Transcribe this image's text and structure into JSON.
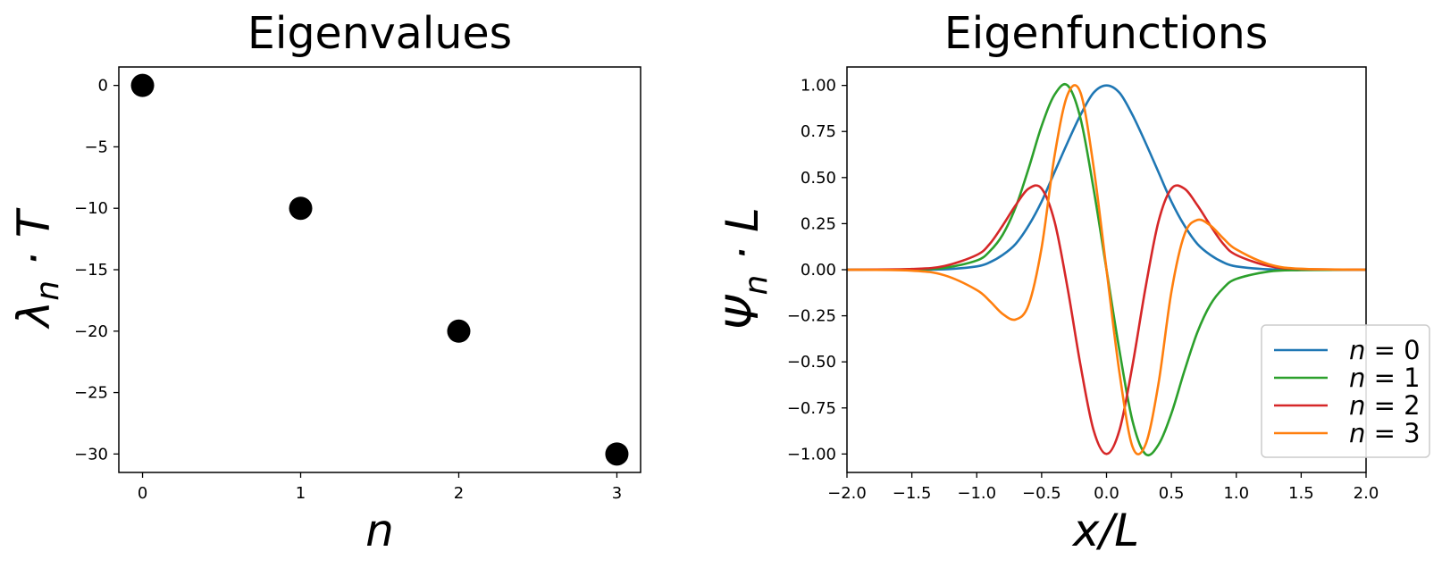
{
  "chart_data": [
    {
      "type": "scatter",
      "title": "Eigenvalues",
      "xlabel": "n",
      "ylabel": "λ_n · T",
      "ylabel_parts": {
        "main": "λ",
        "sub": "n",
        "rest": " · T"
      },
      "x": [
        0,
        1,
        2,
        3
      ],
      "y": [
        0,
        -10,
        -20,
        -30
      ],
      "xlim": [
        -0.15,
        3.15
      ],
      "ylim": [
        -31.5,
        1.5
      ],
      "xticks": [
        "0",
        "1",
        "2",
        "3"
      ],
      "yticks": [
        "0",
        "−5",
        "−10",
        "−15",
        "−20",
        "−25",
        "−30"
      ],
      "marker_color": "#000000",
      "grid": false
    },
    {
      "type": "line",
      "title": "Eigenfunctions",
      "xlabel": "x/L",
      "ylabel": "Ψ_n · L",
      "ylabel_parts": {
        "main": "Ψ",
        "sub": "n",
        "rest": " · L"
      },
      "xlim": [
        -2.0,
        2.0
      ],
      "ylim": [
        -1.1,
        1.1
      ],
      "xticks": [
        "−2.0",
        "−1.5",
        "−1.0",
        "−0.5",
        "0.0",
        "0.5",
        "1.0",
        "1.5",
        "2.0"
      ],
      "yticks": [
        "1.00",
        "0.75",
        "0.50",
        "0.25",
        "0.00",
        "−0.25",
        "−0.50",
        "−0.75",
        "−1.00"
      ],
      "x_sample": [
        -2.0,
        -1.5,
        -1.25,
        -1.0,
        -0.9,
        -0.8,
        -0.7,
        -0.6,
        -0.5,
        -0.4,
        -0.3,
        -0.2,
        -0.1,
        0.0,
        0.1,
        0.2,
        0.3,
        0.4,
        0.5,
        0.6,
        0.7,
        0.8,
        0.9,
        1.0,
        1.25,
        1.5,
        2.0
      ],
      "series": [
        {
          "name": "n = 0",
          "legend": {
            "var": "n",
            "val": "0"
          },
          "color": "#1f77b4",
          "values": [
            0.0,
            0.0,
            0.002,
            0.018,
            0.04,
            0.08,
            0.14,
            0.24,
            0.37,
            0.53,
            0.69,
            0.84,
            0.96,
            1.0,
            0.96,
            0.84,
            0.69,
            0.53,
            0.37,
            0.24,
            0.14,
            0.08,
            0.04,
            0.018,
            0.002,
            0.0,
            0.0
          ]
        },
        {
          "name": "n = 1",
          "legend": {
            "var": "n",
            "val": "1"
          },
          "color": "#2ca02c",
          "values": [
            0.0,
            0.002,
            0.01,
            0.05,
            0.1,
            0.19,
            0.34,
            0.55,
            0.78,
            0.95,
            1.0,
            0.82,
            0.44,
            0.0,
            -0.44,
            -0.82,
            -1.0,
            -0.95,
            -0.78,
            -0.55,
            -0.34,
            -0.19,
            -0.1,
            -0.05,
            -0.01,
            -0.002,
            0.0
          ]
        },
        {
          "name": "n = 2",
          "legend": {
            "var": "n",
            "val": "2"
          },
          "color": "#d62728",
          "values": [
            0.0,
            0.004,
            0.02,
            0.08,
            0.14,
            0.24,
            0.35,
            0.44,
            0.44,
            0.26,
            -0.1,
            -0.52,
            -0.87,
            -1.0,
            -0.87,
            -0.52,
            -0.1,
            0.26,
            0.44,
            0.44,
            0.35,
            0.24,
            0.14,
            0.08,
            0.02,
            0.004,
            0.0
          ]
        },
        {
          "name": "n = 3",
          "legend": {
            "var": "n",
            "val": "3"
          },
          "color": "#ff7f0e",
          "values": [
            0.0,
            -0.005,
            -0.03,
            -0.11,
            -0.17,
            -0.24,
            -0.27,
            -0.19,
            0.12,
            0.62,
            0.95,
            0.96,
            0.56,
            0.0,
            -0.56,
            -0.96,
            -0.95,
            -0.62,
            -0.12,
            0.19,
            0.27,
            0.24,
            0.17,
            0.11,
            0.03,
            0.005,
            0.0
          ]
        }
      ],
      "legend_position": "lower-right",
      "grid": false
    }
  ]
}
